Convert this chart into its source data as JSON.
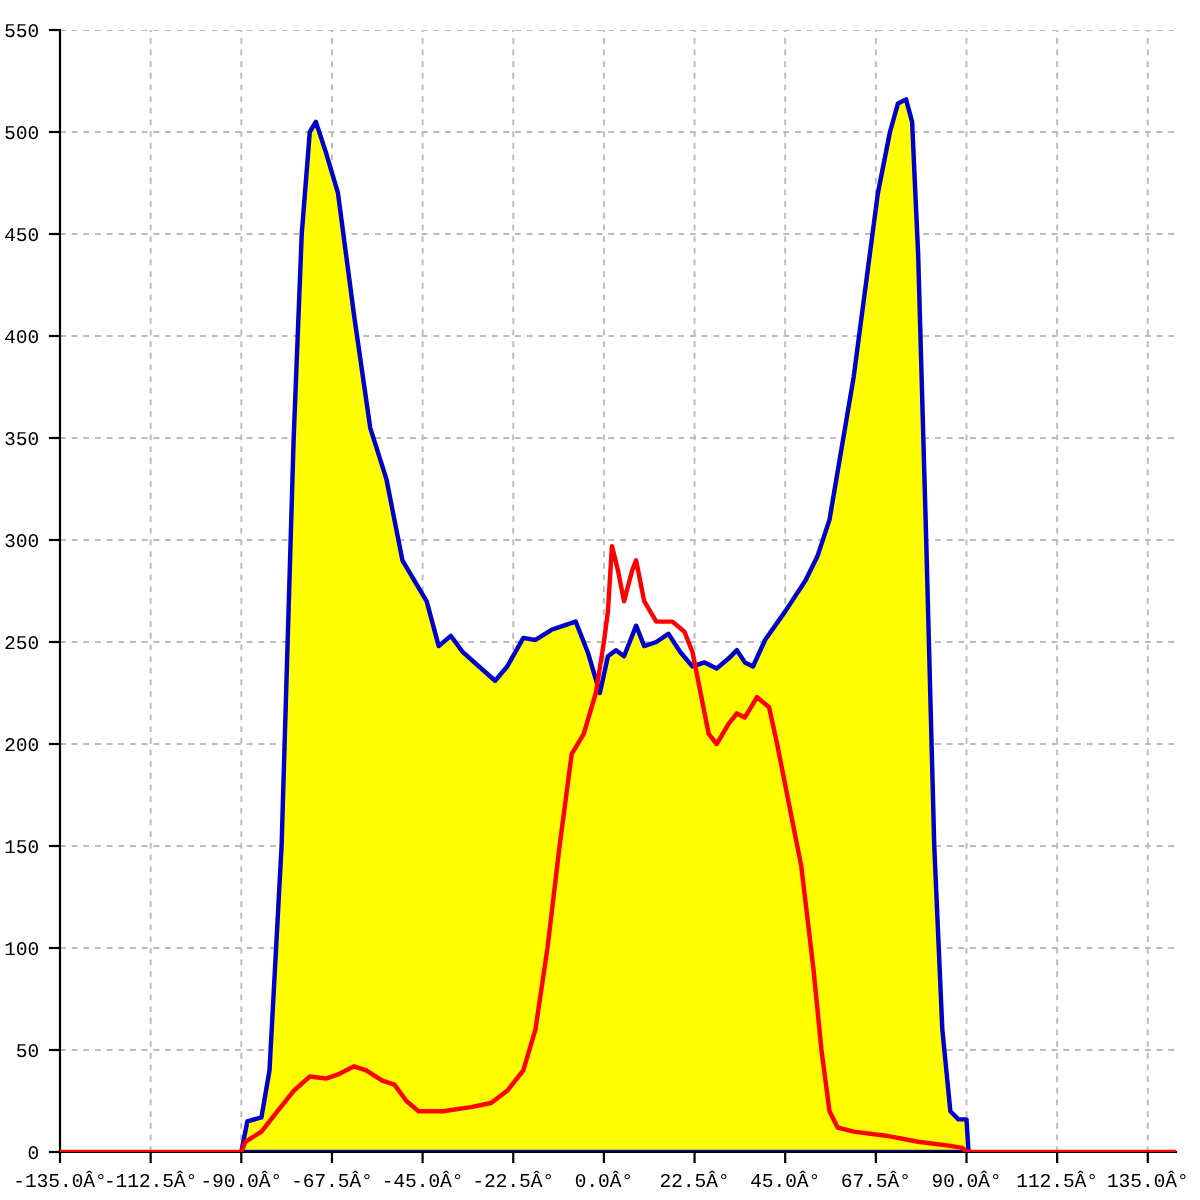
{
  "chart_data": {
    "type": "area",
    "xlim": [
      -135,
      142
    ],
    "ylim": [
      0,
      550
    ],
    "xticks": [
      {
        "value": -135,
        "label": "-135.0Â°"
      },
      {
        "value": -112.5,
        "label": "-112.5Â°"
      },
      {
        "value": -90,
        "label": "-90.0Â°"
      },
      {
        "value": -67.5,
        "label": "-67.5Â°"
      },
      {
        "value": -45,
        "label": "-45.0Â°"
      },
      {
        "value": -22.5,
        "label": "-22.5Â°"
      },
      {
        "value": 0,
        "label": "0.0Â°"
      },
      {
        "value": 22.5,
        "label": "22.5Â°"
      },
      {
        "value": 45,
        "label": "45.0Â°"
      },
      {
        "value": 67.5,
        "label": "67.5Â°"
      },
      {
        "value": 90,
        "label": "90.0Â°"
      },
      {
        "value": 112.5,
        "label": "112.5Â°"
      },
      {
        "value": 135,
        "label": "135.0Â°"
      }
    ],
    "yticks": [
      0,
      50,
      100,
      150,
      200,
      250,
      300,
      350,
      400,
      450,
      500,
      550
    ],
    "grid": true,
    "series": [
      {
        "color": "#0000cc",
        "x": [
          -90,
          -88.5,
          -85,
          -83,
          -80,
          -77,
          -75,
          -73,
          -71.5,
          -69,
          -66,
          -62,
          -58,
          -54,
          -50,
          -47,
          -44,
          -41,
          -38,
          -35,
          -31,
          -27,
          -24,
          -20,
          -17,
          -13,
          -10,
          -7,
          -4,
          -1,
          1,
          3,
          5,
          8,
          10,
          13,
          16,
          19,
          22,
          25,
          28,
          31,
          33,
          35,
          37,
          40,
          45,
          50,
          53,
          56,
          59,
          62,
          65,
          68,
          71,
          73,
          75,
          76.5,
          78,
          80,
          82,
          84,
          86,
          88,
          90,
          90.5
        ],
        "values": [
          0,
          15,
          17,
          40,
          150,
          350,
          450,
          500,
          505,
          490,
          470,
          410,
          355,
          330,
          290,
          280,
          270,
          248,
          253,
          245,
          238,
          231,
          238,
          252,
          251,
          256,
          258,
          260,
          245,
          225,
          243,
          246,
          243,
          258,
          248,
          250,
          254,
          245,
          238,
          240,
          237,
          242,
          246,
          240,
          238,
          251,
          265,
          280,
          292,
          310,
          345,
          380,
          425,
          470,
          500,
          514,
          516,
          505,
          440,
          300,
          150,
          60,
          20,
          16,
          16,
          0
        ]
      },
      {
        "type": "line",
        "color": "#ff0000",
        "x": [
          -135,
          -90,
          -89,
          -85,
          -81,
          -77,
          -73,
          -69,
          -66,
          -62,
          -59,
          -55,
          -52,
          -49,
          -46,
          -40,
          -33,
          -28,
          -24,
          -20,
          -17,
          -14,
          -11,
          -8,
          -5,
          -2,
          0,
          1,
          2,
          3.5,
          5,
          7,
          8,
          10,
          13,
          17,
          20,
          22,
          24,
          26,
          28,
          31,
          33,
          35,
          38,
          41,
          43,
          46,
          49,
          52,
          54,
          56,
          58,
          62,
          70,
          78,
          86,
          89,
          90,
          142
        ],
        "values": [
          0,
          0,
          5,
          10,
          20,
          30,
          37,
          36,
          38,
          42,
          40,
          35,
          33,
          25,
          20,
          20,
          22,
          24,
          30,
          40,
          60,
          100,
          150,
          195,
          205,
          225,
          250,
          265,
          297,
          285,
          270,
          285,
          290,
          270,
          260,
          260,
          255,
          245,
          225,
          205,
          200,
          210,
          215,
          213,
          223,
          218,
          200,
          170,
          140,
          90,
          50,
          20,
          12,
          10,
          8,
          5,
          3,
          2,
          0,
          0
        ]
      }
    ]
  }
}
